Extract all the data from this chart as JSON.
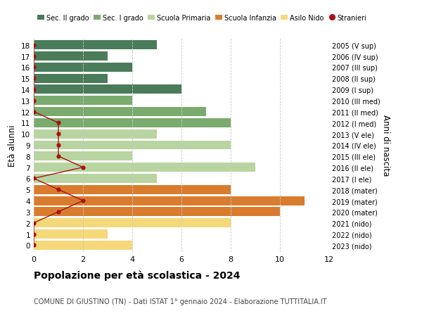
{
  "ages": [
    18,
    17,
    16,
    15,
    14,
    13,
    12,
    11,
    10,
    9,
    8,
    7,
    6,
    5,
    4,
    3,
    2,
    1,
    0
  ],
  "years": [
    "2005 (V sup)",
    "2006 (IV sup)",
    "2007 (III sup)",
    "2008 (II sup)",
    "2009 (I sup)",
    "2010 (III med)",
    "2011 (II med)",
    "2012 (I med)",
    "2013 (V ele)",
    "2014 (IV ele)",
    "2015 (III ele)",
    "2016 (II ele)",
    "2017 (I ele)",
    "2018 (mater)",
    "2019 (mater)",
    "2020 (mater)",
    "2021 (nido)",
    "2022 (nido)",
    "2023 (nido)"
  ],
  "bar_values": [
    5,
    3,
    4,
    3,
    6,
    4,
    7,
    8,
    5,
    8,
    4,
    9,
    5,
    8,
    11,
    10,
    8,
    3,
    4
  ],
  "bar_colors": [
    "#4a7c59",
    "#4a7c59",
    "#4a7c59",
    "#4a7c59",
    "#4a7c59",
    "#7aab6e",
    "#7aab6e",
    "#7aab6e",
    "#b8d4a0",
    "#b8d4a0",
    "#b8d4a0",
    "#b8d4a0",
    "#b8d4a0",
    "#d97c2e",
    "#d97c2e",
    "#d97c2e",
    "#f5d87a",
    "#f5d87a",
    "#f5d87a"
  ],
  "stranieri_values": [
    0,
    0,
    0,
    0,
    0,
    0,
    0,
    1,
    1,
    1,
    1,
    2,
    0,
    1,
    2,
    1,
    0,
    0,
    0
  ],
  "title": "Popolazione per età scolastica - 2024",
  "subtitle": "COMUNE DI GIUSTINO (TN) - Dati ISTAT 1° gennaio 2024 - Elaborazione TUTTITALIA.IT",
  "ylabel": "Età alunni",
  "ylabel2": "Anni di nascita",
  "xlim": [
    0,
    12
  ],
  "xticks": [
    0,
    2,
    4,
    6,
    8,
    10,
    12
  ],
  "legend_labels": [
    "Sec. II grado",
    "Sec. I grado",
    "Scuola Primaria",
    "Scuola Infanzia",
    "Asilo Nido",
    "Stranieri"
  ],
  "legend_colors": [
    "#4a7c59",
    "#7aab6e",
    "#b8d4a0",
    "#d97c2e",
    "#f5d87a",
    "#cc2222"
  ],
  "bg_color": "#ffffff",
  "grid_color": "#c8c8c8",
  "bar_height": 0.82,
  "stranieri_line_color": "#aa1111"
}
